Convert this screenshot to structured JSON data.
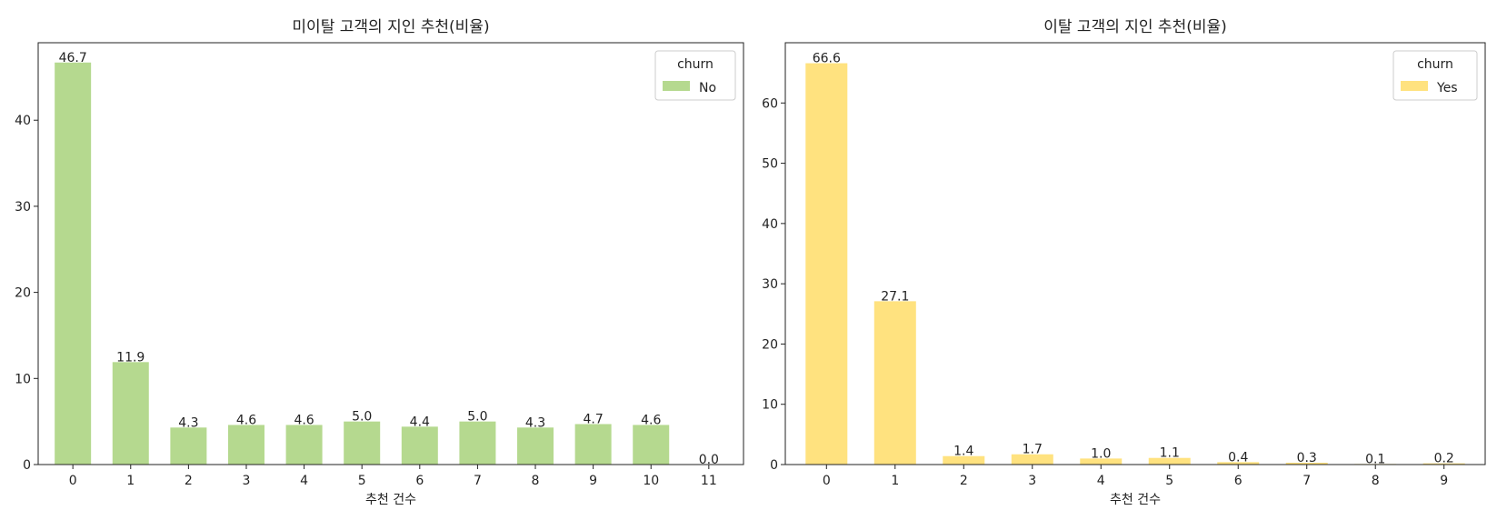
{
  "chart_data": [
    {
      "type": "bar",
      "title": "미이탈 고객의 지인 추천(비율)",
      "xlabel": "추천 건수",
      "ylabel": "",
      "categories": [
        "0",
        "1",
        "2",
        "3",
        "4",
        "5",
        "6",
        "7",
        "8",
        "9",
        "10",
        "11"
      ],
      "series": [
        {
          "name": "No",
          "values": [
            46.7,
            11.9,
            4.3,
            4.6,
            4.6,
            5.0,
            4.4,
            5.0,
            4.3,
            4.7,
            4.6,
            0.0
          ],
          "color": "#b5d98f"
        }
      ],
      "data_labels": [
        "46.7",
        "11.9",
        "4.3",
        "4.6",
        "4.6",
        "5.0",
        "4.4",
        "5.0",
        "4.3",
        "4.7",
        "4.6",
        "0.0"
      ],
      "yticks": [
        "0",
        "10",
        "20",
        "30",
        "40"
      ],
      "ylim": [
        0,
        49
      ],
      "legend": {
        "title": "churn",
        "placement": "top-right"
      },
      "grid": false
    },
    {
      "type": "bar",
      "title": "이탈 고객의 지인 추천(비율)",
      "xlabel": "추천 건수",
      "ylabel": "",
      "categories": [
        "0",
        "1",
        "2",
        "3",
        "4",
        "5",
        "6",
        "7",
        "8",
        "9"
      ],
      "series": [
        {
          "name": "Yes",
          "values": [
            66.6,
            27.1,
            1.4,
            1.7,
            1.0,
            1.1,
            0.4,
            0.3,
            0.1,
            0.2
          ],
          "color": "#ffe27f"
        }
      ],
      "data_labels": [
        "66.6",
        "27.1",
        "1.4",
        "1.7",
        "1.0",
        "1.1",
        "0.4",
        "0.3",
        "0.1",
        "0.2"
      ],
      "yticks": [
        "0",
        "10",
        "20",
        "30",
        "40",
        "50",
        "60"
      ],
      "ylim": [
        0,
        70
      ],
      "legend": {
        "title": "churn",
        "placement": "top-right"
      },
      "grid": false
    }
  ]
}
